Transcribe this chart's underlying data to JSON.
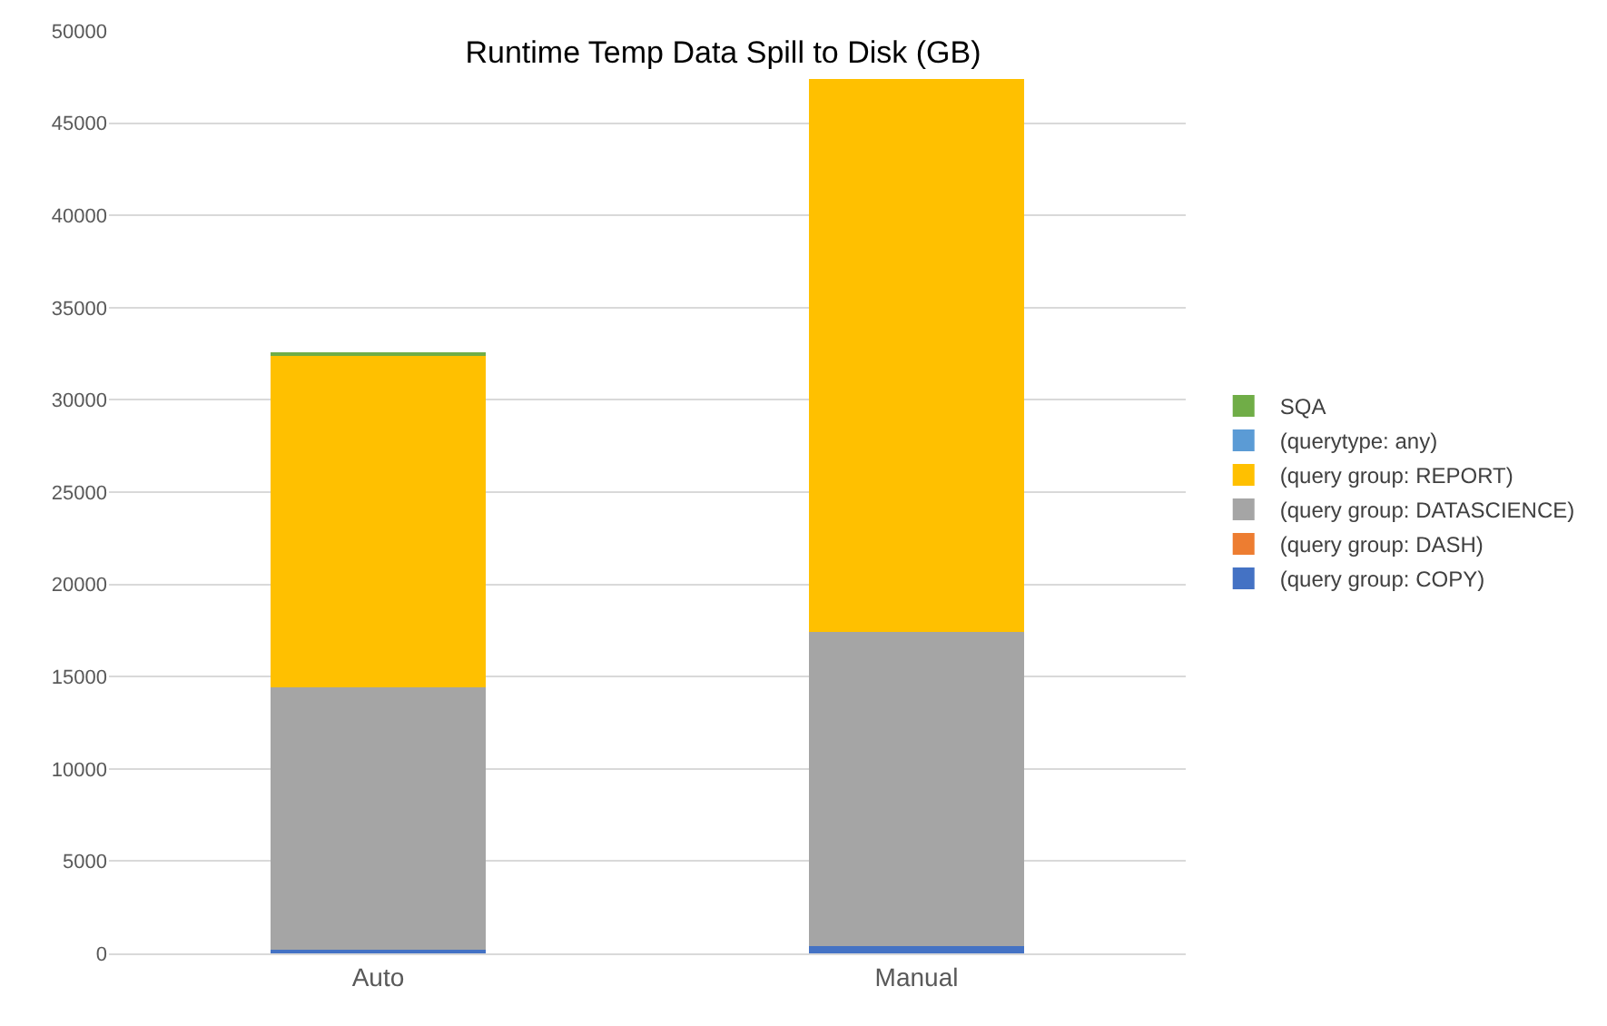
{
  "chart_data": {
    "type": "bar",
    "title": "Runtime Temp Data Spill to Disk (GB)",
    "categories": [
      "Auto",
      "Manual"
    ],
    "stacked": true,
    "series": [
      {
        "name": "(query group: COPY)",
        "color": "#4472c4",
        "values": [
          200,
          400
        ]
      },
      {
        "name": "(query group: DASH)",
        "color": "#ed7d31",
        "values": [
          0,
          0
        ]
      },
      {
        "name": "(query group: DATASCIENCE)",
        "color": "#a5a5a5",
        "values": [
          14200,
          17000
        ]
      },
      {
        "name": "(query group: REPORT)",
        "color": "#ffc000",
        "values": [
          18000,
          30000
        ]
      },
      {
        "name": "(querytype: any)",
        "color": "#5b9bd5",
        "values": [
          0,
          0
        ]
      },
      {
        "name": "SQA",
        "color": "#70ad47",
        "values": [
          100,
          0
        ]
      }
    ],
    "ylim": [
      0,
      50000
    ],
    "yticks": [
      0,
      5000,
      10000,
      15000,
      20000,
      25000,
      30000,
      35000,
      40000,
      45000,
      50000
    ],
    "grid": "y",
    "legend": "right"
  }
}
